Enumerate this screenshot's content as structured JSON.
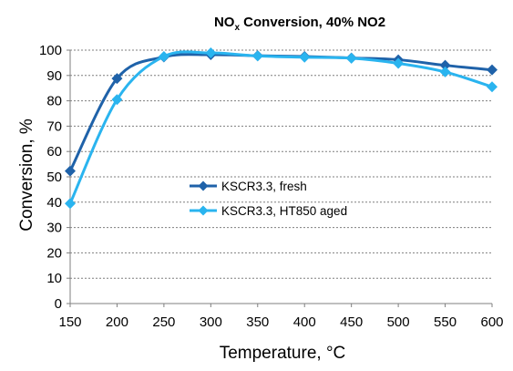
{
  "chart_data": {
    "type": "line",
    "title_main": "NO",
    "title_sub": "x",
    "title_rest": " Conversion, 40%  NO2",
    "xlabel": "Temperature, °C",
    "ylabel": "Conversion, %",
    "x": [
      150,
      200,
      250,
      300,
      350,
      400,
      450,
      500,
      550,
      600
    ],
    "xlim": [
      150,
      600
    ],
    "ylim": [
      0,
      100
    ],
    "y_ticks": [
      0,
      10,
      20,
      30,
      40,
      50,
      60,
      70,
      80,
      90,
      100
    ],
    "grid": "horizontal-dotted",
    "legend_position": "center-left",
    "series": [
      {
        "name": "KSCR3.3, fresh",
        "color": "#1f62a9",
        "values": [
          52.3,
          88.8,
          97.3,
          98.2,
          97.8,
          97.5,
          96.9,
          96.2,
          94.0,
          92.2
        ]
      },
      {
        "name": "KSCR3.3, HT850 aged",
        "color": "#2ab4ef",
        "values": [
          39.5,
          80.5,
          97.5,
          98.9,
          97.7,
          97.2,
          96.8,
          94.8,
          91.4,
          85.5
        ]
      }
    ]
  }
}
